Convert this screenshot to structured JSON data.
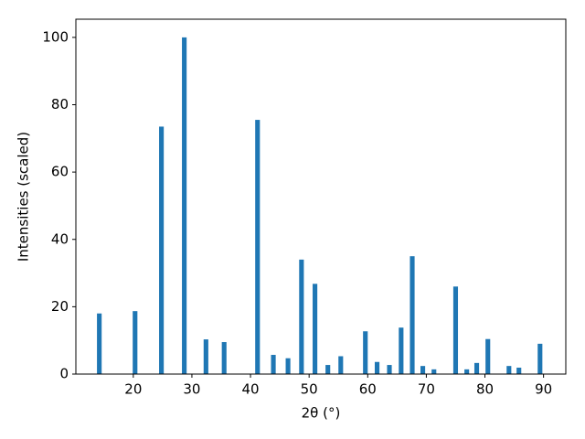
{
  "chart_data": {
    "type": "bar",
    "xlabel": "2θ (°)",
    "ylabel": "Intensities (scaled)",
    "x": [
      14.2,
      20.3,
      24.8,
      28.7,
      32.4,
      35.5,
      41.2,
      43.9,
      46.4,
      48.7,
      51.0,
      53.2,
      55.4,
      59.6,
      61.6,
      63.7,
      65.7,
      67.6,
      69.4,
      71.3,
      75.0,
      76.9,
      78.6,
      80.5,
      84.1,
      85.8,
      89.4
    ],
    "values": [
      18,
      18.7,
      73.5,
      100,
      10.3,
      9.5,
      75.5,
      5.7,
      4.7,
      34,
      26.8,
      2.7,
      5.3,
      12.7,
      3.6,
      2.7,
      13.8,
      35,
      2.4,
      1.4,
      26,
      1.4,
      3.3,
      10.4,
      2.4,
      1.9,
      9
    ],
    "color": "#1f77b4",
    "xlim": [
      10.2,
      93.8
    ],
    "ylim": [
      0,
      105.4
    ],
    "xticks": [
      20,
      30,
      40,
      50,
      60,
      70,
      80,
      90
    ],
    "yticks": [
      0,
      20,
      40,
      60,
      80,
      100
    ],
    "grid": false
  }
}
